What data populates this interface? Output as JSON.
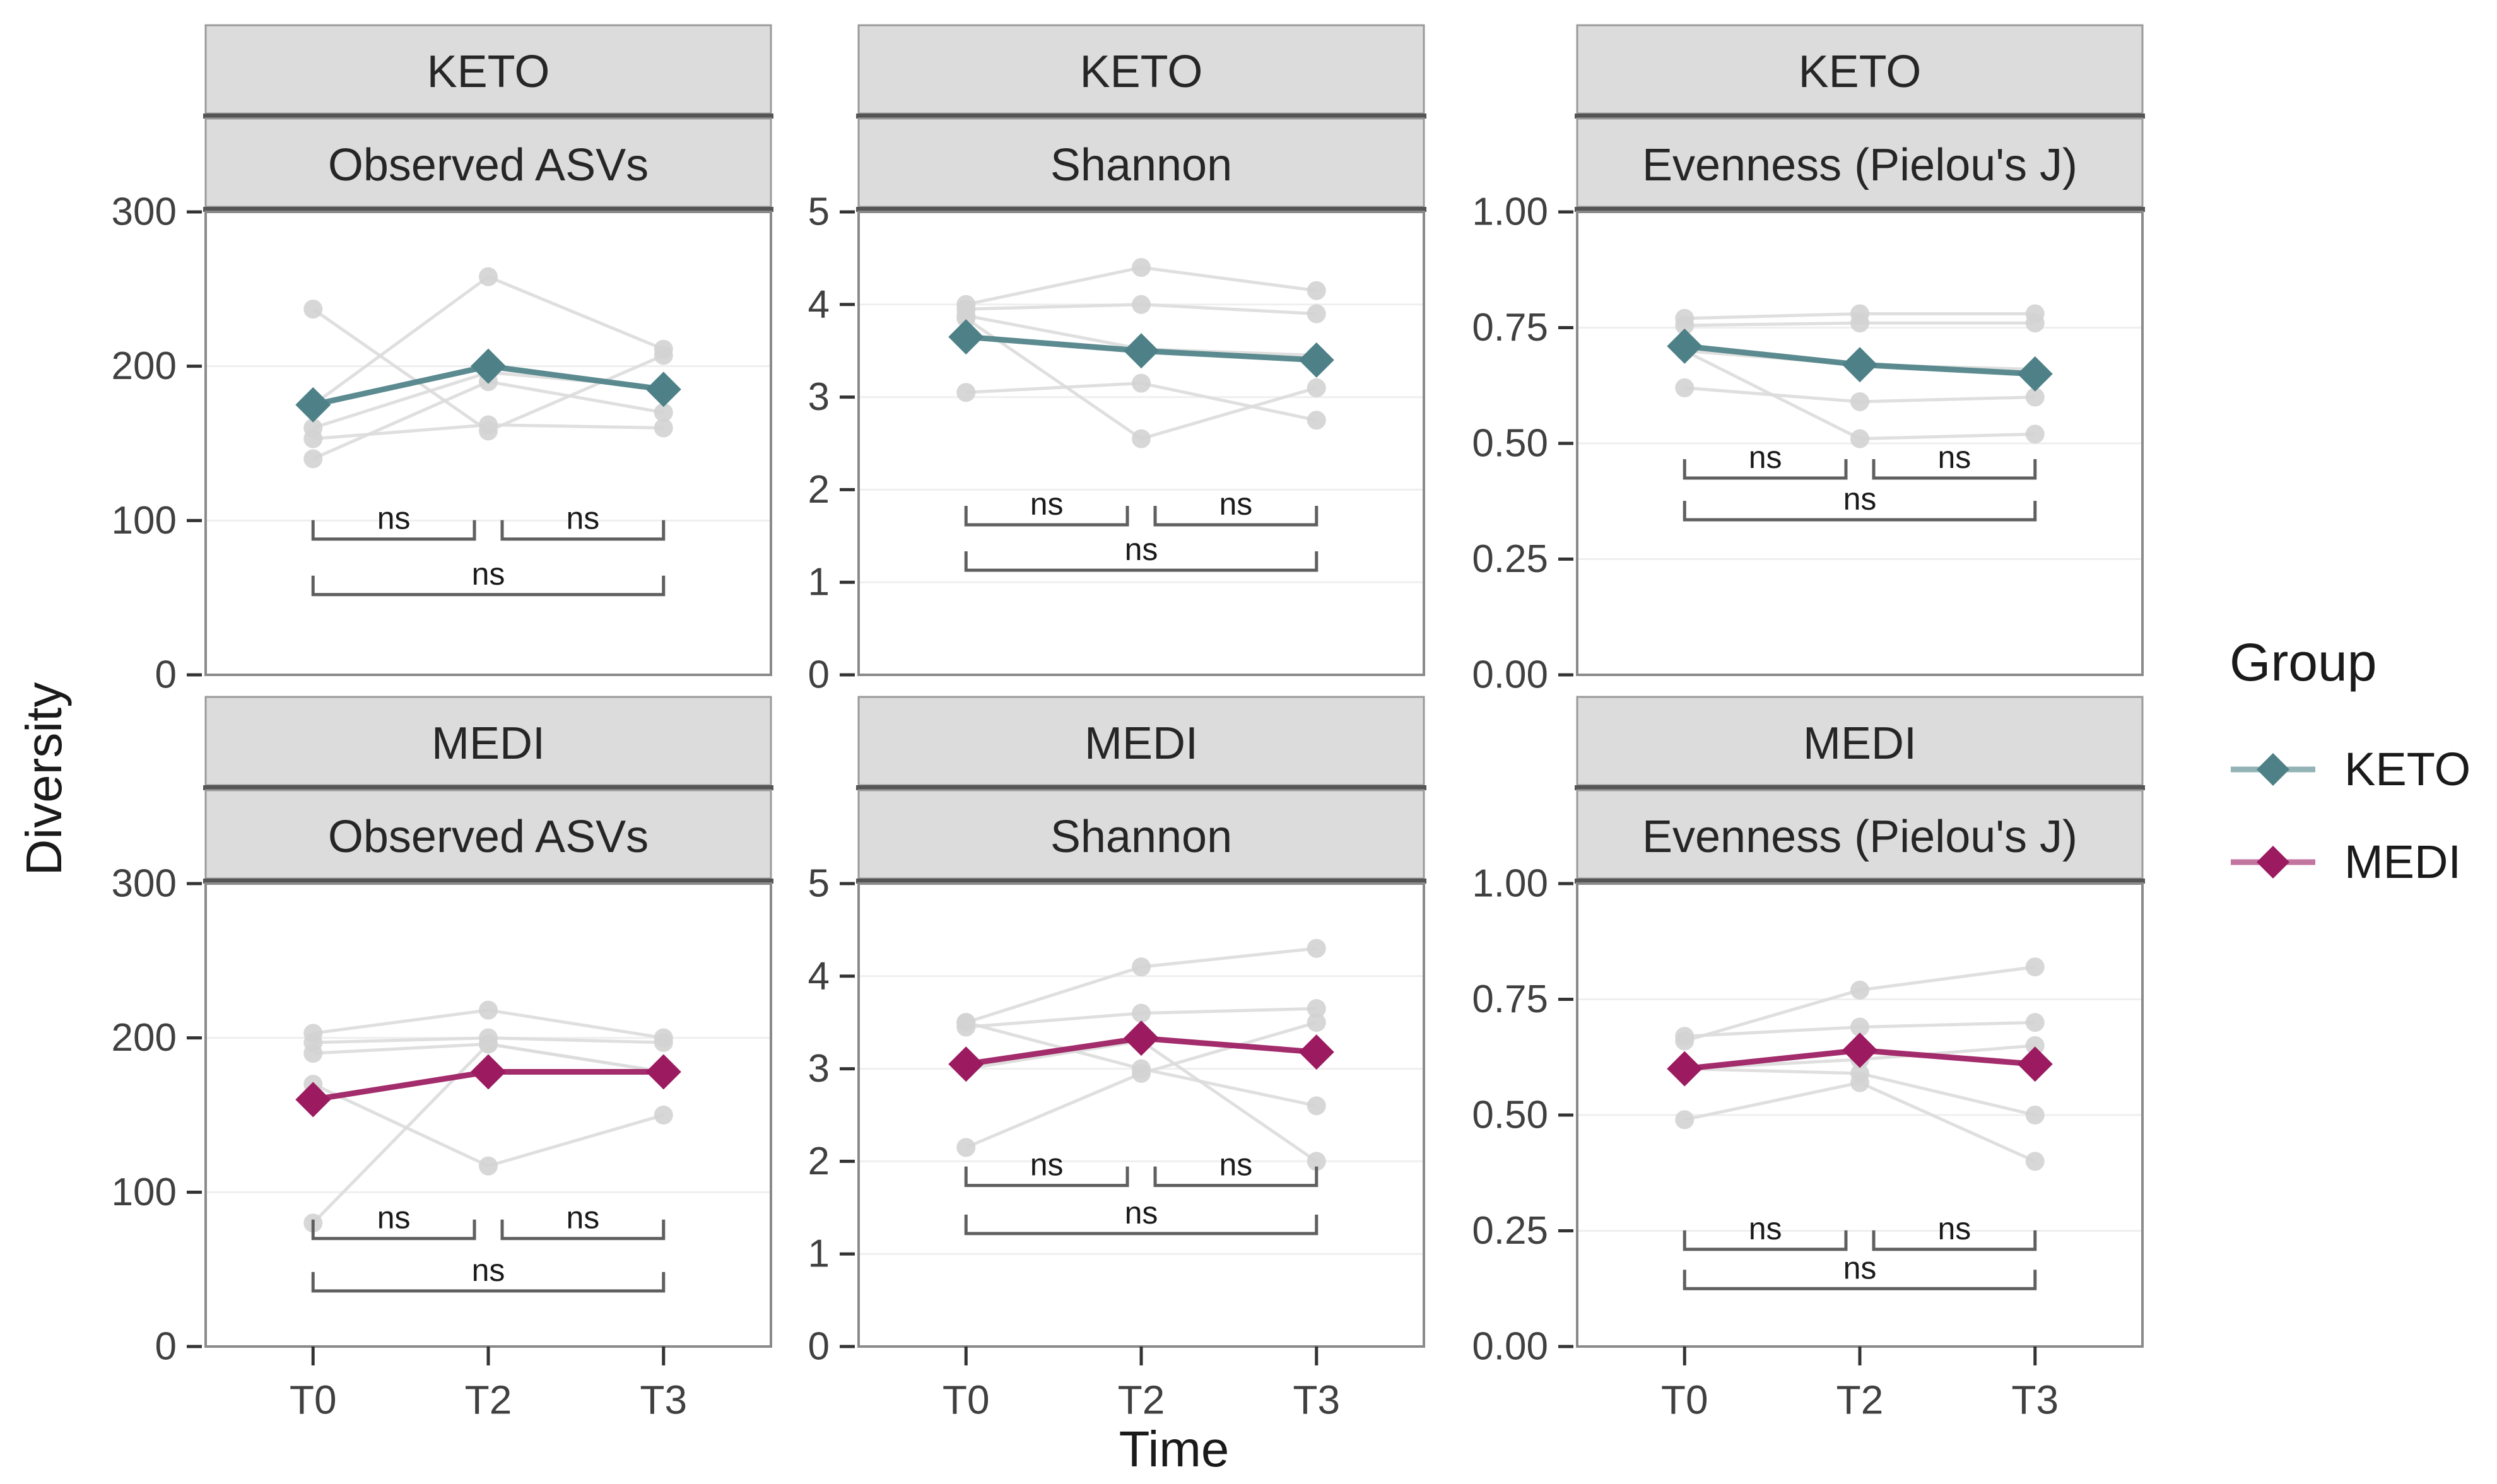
{
  "figure": {
    "background": "#ffffff"
  },
  "axes": {
    "y_title": "Diversity",
    "x_title": "Time",
    "x_categories": [
      "T0",
      "T2",
      "T3"
    ]
  },
  "legend": {
    "title": "Group",
    "entries": [
      {
        "label": "KETO",
        "color": "#4D8187"
      },
      {
        "label": "MEDI",
        "color": "#9B1A60"
      }
    ]
  },
  "colors": {
    "keto": "#4D8187",
    "medi": "#9B1A60",
    "subject_line": "#DCDCDC",
    "subject_point": "#D3D3D3",
    "strip_bg": "#DCDCDC",
    "strip_border": "#9A9A9A",
    "strip_separator": "#555555",
    "panel_border": "#8A8A8A",
    "gridline": "#EFEFEF",
    "tick_mark": "#333333",
    "tick_label": "#404040",
    "strip_text": "#262626",
    "bracket": "#5F5F5F",
    "sig_text": "#1A1A1A"
  },
  "chart_data": {
    "type": "line",
    "facet_rows": [
      "KETO",
      "MEDI"
    ],
    "facet_cols": [
      "Observed ASVs",
      "Shannon",
      "Evenness (Pielou's J)"
    ],
    "x": [
      "T0",
      "T2",
      "T3"
    ],
    "legend_position": "right",
    "grid": "major-horizontal",
    "panels": [
      {
        "group": "KETO",
        "metric": "Observed ASVs",
        "ylim": [
          0,
          300
        ],
        "ytick_values": [
          0,
          100,
          200,
          300
        ],
        "ytick_labels": [
          "0",
          "100",
          "200",
          "300"
        ],
        "mean": [
          175,
          200,
          185
        ],
        "subjects": [
          [
            237,
            158,
            207
          ],
          [
            175,
            258,
            211
          ],
          [
            160,
            196,
            186
          ],
          [
            153,
            162,
            160
          ],
          [
            140,
            190,
            170
          ]
        ],
        "sig": {
          "upper_y": 88,
          "lower_y": 52,
          "comparisons": [
            {
              "a": "T0",
              "b": "T2",
              "label": "ns",
              "row": "upper"
            },
            {
              "a": "T2",
              "b": "T3",
              "label": "ns",
              "row": "upper"
            },
            {
              "a": "T0",
              "b": "T3",
              "label": "ns",
              "row": "lower"
            }
          ]
        }
      },
      {
        "group": "KETO",
        "metric": "Shannon",
        "ylim": [
          0,
          5
        ],
        "ytick_values": [
          0,
          1,
          2,
          3,
          4,
          5
        ],
        "ytick_labels": [
          "0",
          "1",
          "2",
          "3",
          "4",
          "5"
        ],
        "mean": [
          3.65,
          3.5,
          3.4
        ],
        "subjects": [
          [
            4.0,
            4.4,
            4.15
          ],
          [
            3.95,
            4.0,
            3.9
          ],
          [
            3.88,
            3.52,
            3.45
          ],
          [
            3.05,
            3.15,
            2.75
          ],
          [
            3.85,
            2.55,
            3.1
          ]
        ],
        "sig": {
          "upper_y": 1.62,
          "lower_y": 1.13,
          "comparisons": [
            {
              "a": "T0",
              "b": "T2",
              "label": "ns",
              "row": "upper"
            },
            {
              "a": "T2",
              "b": "T3",
              "label": "ns",
              "row": "upper"
            },
            {
              "a": "T0",
              "b": "T3",
              "label": "ns",
              "row": "lower"
            }
          ]
        }
      },
      {
        "group": "KETO",
        "metric": "Evenness (Pielou's J)",
        "ylim": [
          0,
          1
        ],
        "ytick_values": [
          0,
          0.25,
          0.5,
          0.75,
          1
        ],
        "ytick_labels": [
          "0.00",
          "0.25",
          "0.50",
          "0.75",
          "1.00"
        ],
        "mean": [
          0.71,
          0.67,
          0.65
        ],
        "subjects": [
          [
            0.77,
            0.78,
            0.78
          ],
          [
            0.755,
            0.76,
            0.76
          ],
          [
            0.7,
            0.67,
            0.66
          ],
          [
            0.62,
            0.59,
            0.6
          ],
          [
            0.7,
            0.51,
            0.52
          ]
        ],
        "sig": {
          "upper_y": 0.425,
          "lower_y": 0.335,
          "comparisons": [
            {
              "a": "T0",
              "b": "T2",
              "label": "ns",
              "row": "upper"
            },
            {
              "a": "T2",
              "b": "T3",
              "label": "ns",
              "row": "upper"
            },
            {
              "a": "T0",
              "b": "T3",
              "label": "ns",
              "row": "lower"
            }
          ]
        }
      },
      {
        "group": "MEDI",
        "metric": "Observed ASVs",
        "ylim": [
          0,
          300
        ],
        "ytick_values": [
          0,
          100,
          200,
          300
        ],
        "ytick_labels": [
          "0",
          "100",
          "200",
          "300"
        ],
        "mean": [
          160,
          178,
          178
        ],
        "subjects": [
          [
            203,
            218,
            200
          ],
          [
            197,
            200,
            197
          ],
          [
            190,
            196,
            178
          ],
          [
            170,
            117,
            150
          ],
          [
            80,
            196,
            178
          ]
        ],
        "sig": {
          "upper_y": 70,
          "lower_y": 36,
          "comparisons": [
            {
              "a": "T0",
              "b": "T2",
              "label": "ns",
              "row": "upper"
            },
            {
              "a": "T2",
              "b": "T3",
              "label": "ns",
              "row": "upper"
            },
            {
              "a": "T0",
              "b": "T3",
              "label": "ns",
              "row": "lower"
            }
          ]
        }
      },
      {
        "group": "MEDI",
        "metric": "Shannon",
        "ylim": [
          0,
          5
        ],
        "ytick_values": [
          0,
          1,
          2,
          3,
          4,
          5
        ],
        "ytick_labels": [
          "0",
          "1",
          "2",
          "3",
          "4",
          "5"
        ],
        "mean": [
          3.05,
          3.33,
          3.18
        ],
        "subjects": [
          [
            3.5,
            4.1,
            4.3
          ],
          [
            3.45,
            3.6,
            3.65
          ],
          [
            3.5,
            3.0,
            2.6
          ],
          [
            2.15,
            2.95,
            3.5
          ],
          [
            3.0,
            3.3,
            2.0
          ]
        ],
        "sig": {
          "upper_y": 1.74,
          "lower_y": 1.22,
          "comparisons": [
            {
              "a": "T0",
              "b": "T2",
              "label": "ns",
              "row": "upper"
            },
            {
              "a": "T2",
              "b": "T3",
              "label": "ns",
              "row": "upper"
            },
            {
              "a": "T0",
              "b": "T3",
              "label": "ns",
              "row": "lower"
            }
          ]
        }
      },
      {
        "group": "MEDI",
        "metric": "Evenness (Pielou's J)",
        "ylim": [
          0,
          1
        ],
        "ytick_values": [
          0,
          0.25,
          0.5,
          0.75,
          1
        ],
        "ytick_labels": [
          "0.00",
          "0.25",
          "0.50",
          "0.75",
          "1.00"
        ],
        "mean": [
          0.6,
          0.64,
          0.61
        ],
        "subjects": [
          [
            0.66,
            0.77,
            0.82
          ],
          [
            0.67,
            0.69,
            0.7
          ],
          [
            0.6,
            0.59,
            0.5
          ],
          [
            0.49,
            0.57,
            0.4
          ],
          [
            0.6,
            0.62,
            0.65
          ]
        ],
        "sig": {
          "upper_y": 0.21,
          "lower_y": 0.125,
          "comparisons": [
            {
              "a": "T0",
              "b": "T2",
              "label": "ns",
              "row": "upper"
            },
            {
              "a": "T2",
              "b": "T3",
              "label": "ns",
              "row": "upper"
            },
            {
              "a": "T0",
              "b": "T3",
              "label": "ns",
              "row": "lower"
            }
          ]
        }
      }
    ]
  }
}
